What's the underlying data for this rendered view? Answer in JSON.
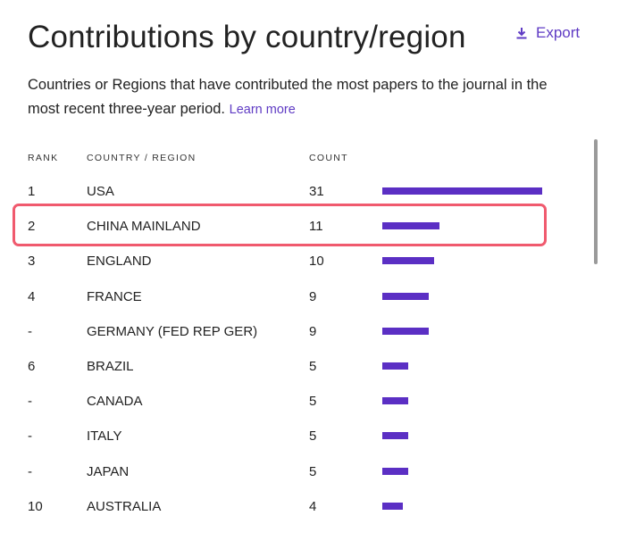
{
  "header": {
    "title": "Contributions by country/region",
    "export_label": "Export",
    "description": "Countries or Regions that have contributed the most papers to the journal in the most recent three-year period.",
    "learn_more": "Learn more"
  },
  "table": {
    "columns": {
      "rank": "RANK",
      "country": "COUNTRY / REGION",
      "count": "COUNT"
    },
    "max_count": 31,
    "rows": [
      {
        "rank": "1",
        "country": "USA",
        "count": "31",
        "value": 31
      },
      {
        "rank": "2",
        "country": "CHINA MAINLAND",
        "count": "11",
        "value": 11
      },
      {
        "rank": "3",
        "country": "ENGLAND",
        "count": "10",
        "value": 10
      },
      {
        "rank": "4",
        "country": "FRANCE",
        "count": "9",
        "value": 9
      },
      {
        "rank": "-",
        "country": "GERMANY (FED REP GER)",
        "count": "9",
        "value": 9
      },
      {
        "rank": "6",
        "country": "BRAZIL",
        "count": "5",
        "value": 5
      },
      {
        "rank": "-",
        "country": "CANADA",
        "count": "5",
        "value": 5
      },
      {
        "rank": "-",
        "country": "ITALY",
        "count": "5",
        "value": 5
      },
      {
        "rank": "-",
        "country": "JAPAN",
        "count": "5",
        "value": 5
      },
      {
        "rank": "10",
        "country": "AUSTRALIA",
        "count": "4",
        "value": 4
      }
    ]
  },
  "colors": {
    "accent": "#5f3bc4",
    "bar": "#5b2fc4",
    "highlight": "#f05a6e"
  },
  "icons": {
    "export": "download-icon"
  }
}
